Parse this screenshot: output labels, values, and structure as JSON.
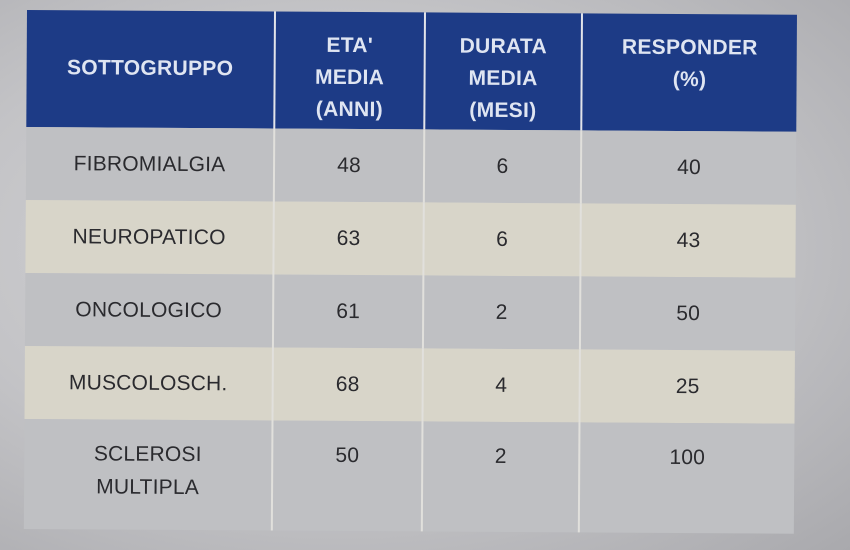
{
  "chart_data": {
    "type": "table",
    "columns": [
      {
        "key": "subgroup",
        "lines": [
          "SOTTOGRUPPO"
        ]
      },
      {
        "key": "age",
        "lines": [
          "ETA'",
          "MEDIA",
          "(ANNI)"
        ]
      },
      {
        "key": "duration",
        "lines": [
          "DURATA",
          "MEDIA",
          "(MESI)"
        ]
      },
      {
        "key": "responder",
        "lines": [
          "RESPONDER",
          "(%)"
        ]
      }
    ],
    "rows": [
      {
        "subgroup": [
          "FIBROMIALGIA"
        ],
        "age": 48,
        "duration": 6,
        "responder": 40
      },
      {
        "subgroup": [
          "NEUROPATICO"
        ],
        "age": 63,
        "duration": 6,
        "responder": 43
      },
      {
        "subgroup": [
          "ONCOLOGICO"
        ],
        "age": 61,
        "duration": 2,
        "responder": 50
      },
      {
        "subgroup": [
          "MUSCOLOSCH."
        ],
        "age": 68,
        "duration": 4,
        "responder": 25
      },
      {
        "subgroup": [
          "SCLEROSI",
          "MULTIPLA"
        ],
        "age": 50,
        "duration": 2,
        "responder": 100
      }
    ]
  },
  "colors": {
    "header_bg": "#1d3b86",
    "header_text": "#dfe5f2",
    "row_odd": "#bfc0c3",
    "row_even": "#d8d5c9",
    "body_text": "#2a2a2e"
  }
}
